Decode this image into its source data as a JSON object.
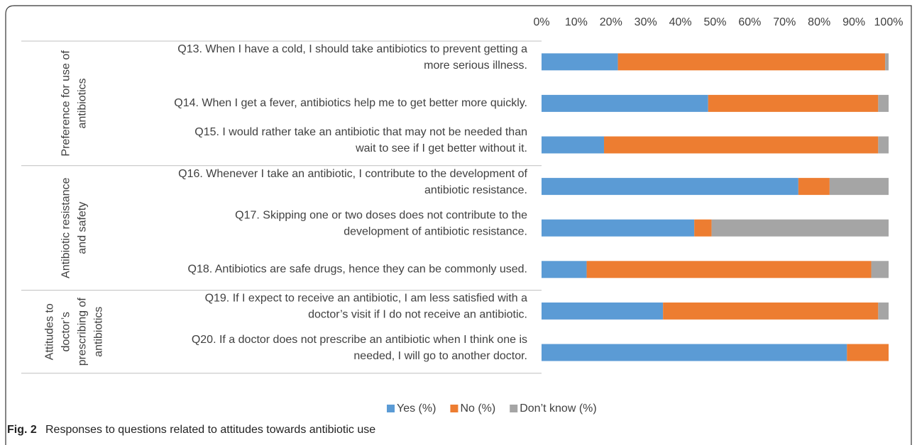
{
  "chart_data": {
    "type": "stacked-barh",
    "categories": [
      [
        "Q13. When I have a cold, I should take antibiotics to prevent getting a",
        "more serious illness."
      ],
      [
        "Q14. When I get a fever, antibiotics help me to get better more quickly."
      ],
      [
        "Q15. I would rather take an antibiotic that may not be needed than",
        "wait to see if I get better without it."
      ],
      [
        "Q16. Whenever I take an antibiotic, I contribute to the development of",
        "antibiotic resistance."
      ],
      [
        "Q17. Skipping one or two doses does not contribute to the",
        "development of antibiotic resistance."
      ],
      [
        "Q18. Antibiotics are safe drugs, hence they can be commonly used."
      ],
      [
        "Q19. If I expect to receive an antibiotic, I am less satisfied with a",
        "doctor’s visit if I do not receive an antibiotic."
      ],
      [
        "Q20. If a doctor does not prescribe an antibiotic when I think one is",
        "needed, I will go to another doctor."
      ]
    ],
    "groups": [
      [
        "Preference for use of",
        "antibiotics"
      ],
      [
        "Antibiotic resistance",
        "and safety"
      ],
      [
        "Attitudes to",
        "doctor’s",
        "prescribing of",
        "antibiotics"
      ]
    ],
    "series": [
      {
        "name": "Yes (%)",
        "color": "#5b9bd5",
        "values": [
          22,
          48,
          18,
          74,
          44,
          13,
          35,
          88
        ]
      },
      {
        "name": "No (%)",
        "color": "#ed7d31",
        "values": [
          77,
          49,
          79,
          9,
          5,
          82,
          62,
          12
        ]
      },
      {
        "name": "Don’t know (%)",
        "color": "#a5a5a5",
        "values": [
          1,
          3,
          3,
          17,
          51,
          5,
          3,
          0
        ]
      }
    ],
    "xlim": [
      0,
      100
    ],
    "xticks": [
      {
        "value": 0,
        "label": "0%"
      },
      {
        "value": 10,
        "label": "10%"
      },
      {
        "value": 20,
        "label": "20%"
      },
      {
        "value": 30,
        "label": "30%"
      },
      {
        "value": 40,
        "label": "40%"
      },
      {
        "value": 50,
        "label": "50%"
      },
      {
        "value": 60,
        "label": "60%"
      },
      {
        "value": 70,
        "label": "70%"
      },
      {
        "value": 80,
        "label": "80%"
      },
      {
        "value": 90,
        "label": "90%"
      },
      {
        "value": 100,
        "label": "100%"
      }
    ],
    "caption_label": "Fig. 2",
    "caption_text": "Responses to questions related to attitudes towards antibiotic use"
  }
}
